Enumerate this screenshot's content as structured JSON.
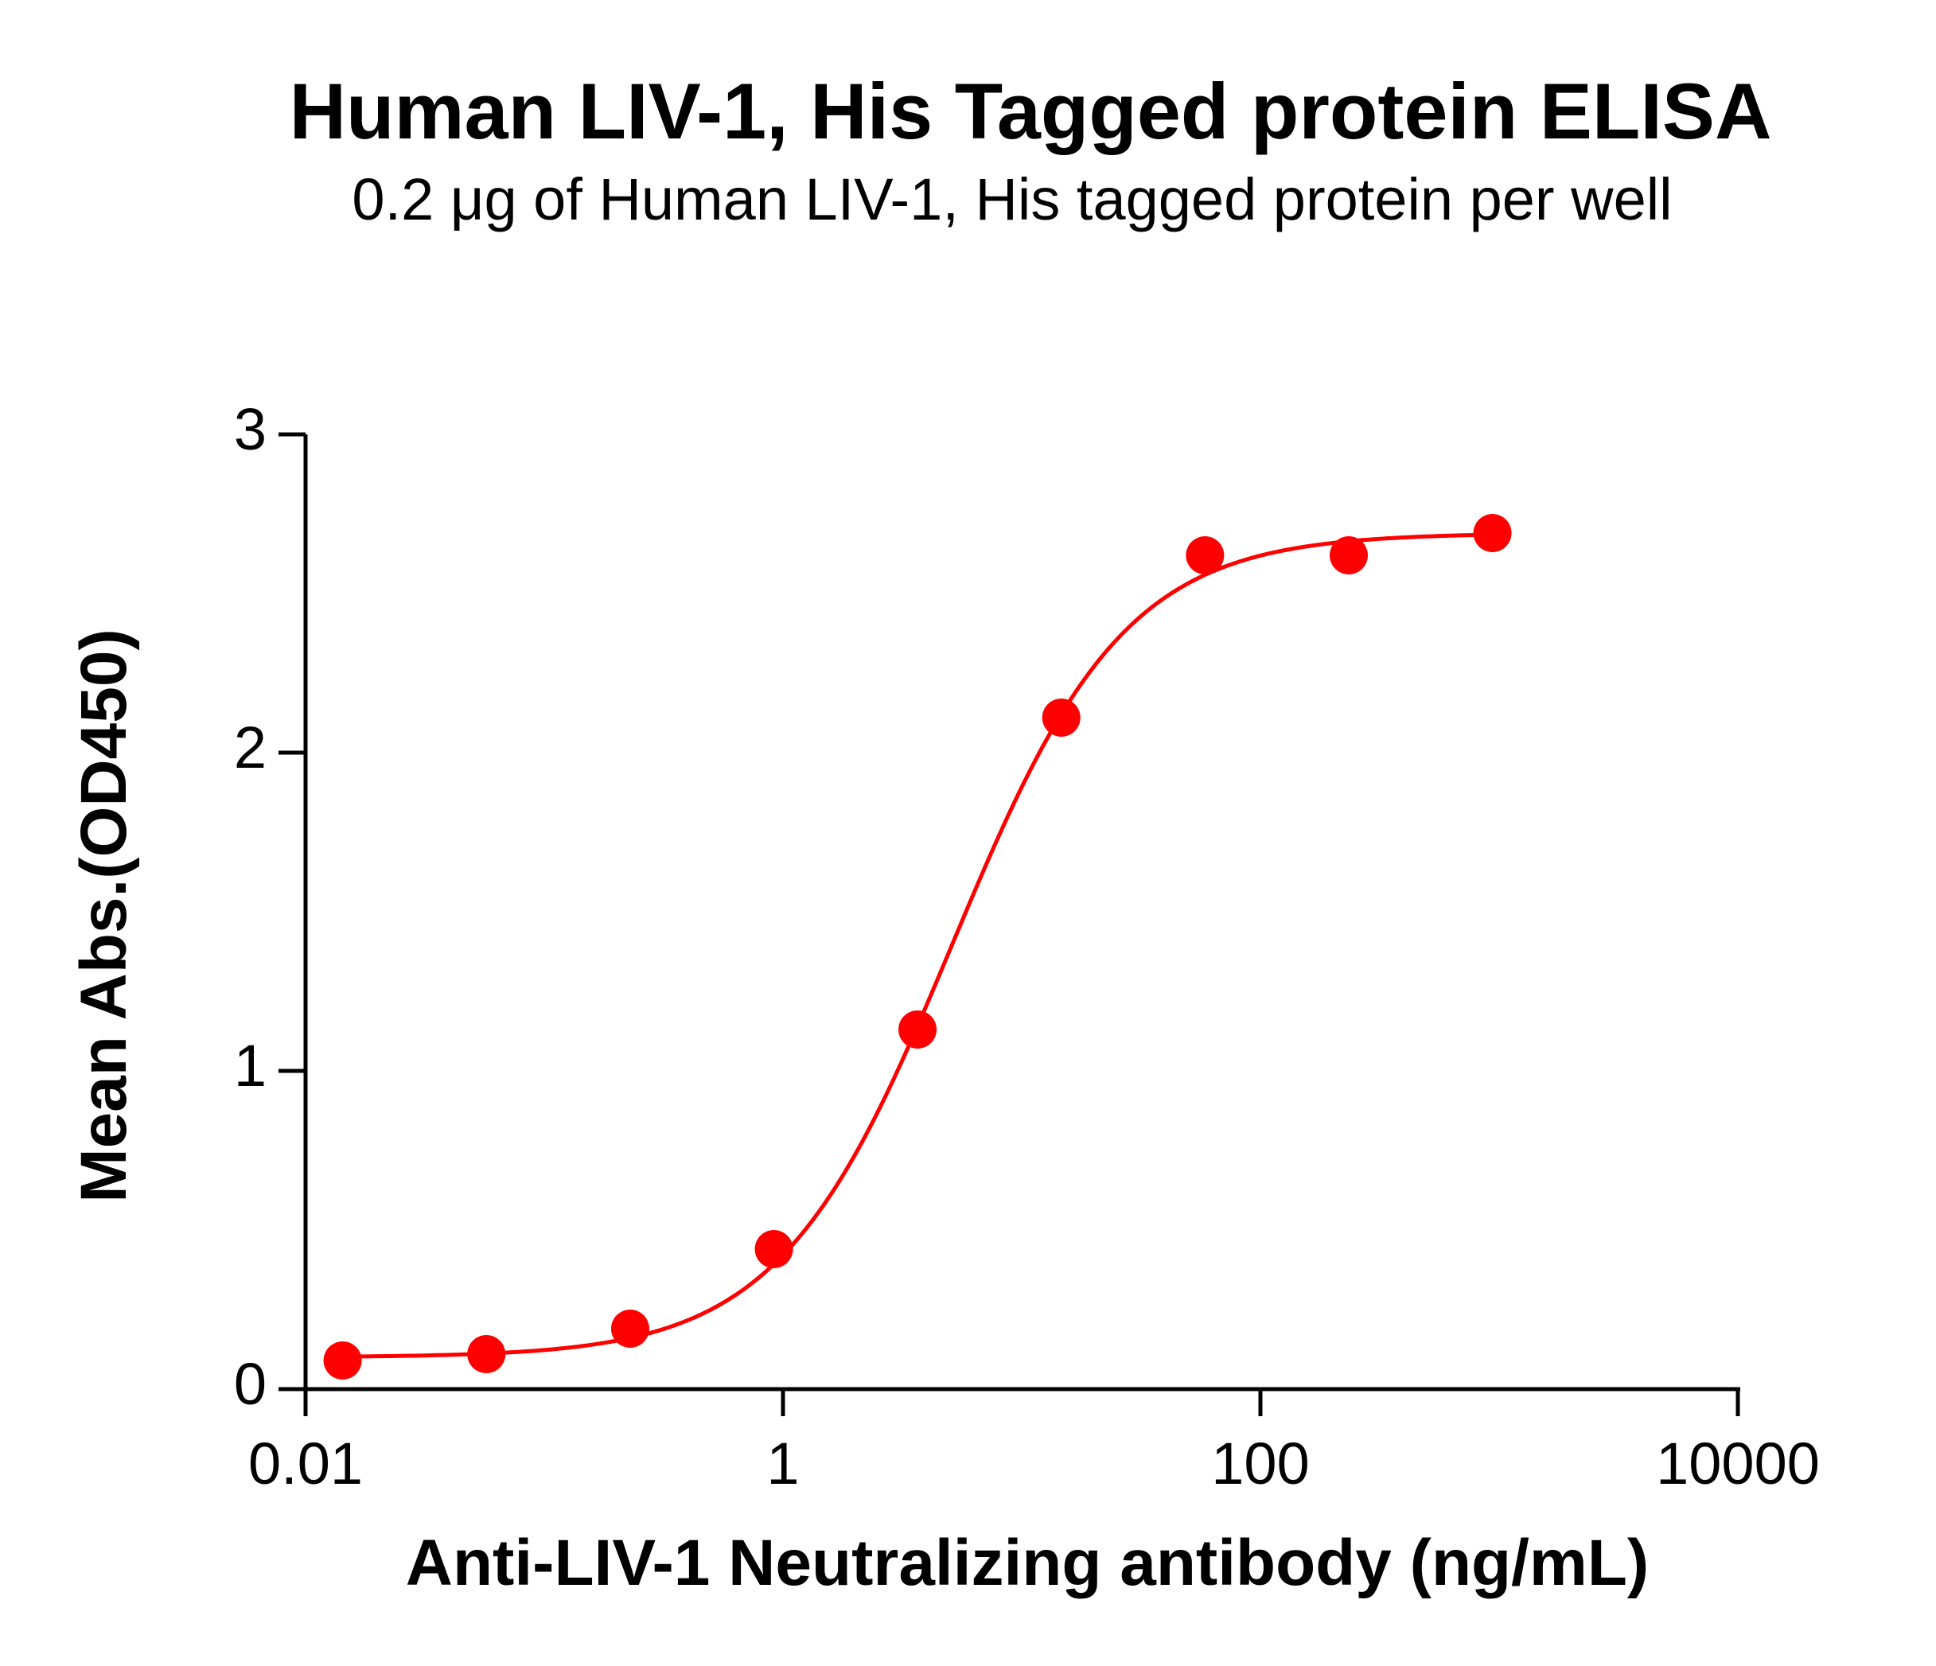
{
  "header": {
    "title": "Human LIV-1, His Tagged protein ELISA",
    "subtitle": "0.2 μg of Human LIV-1, His tagged protein per well"
  },
  "colors": {
    "series": "#FF0000",
    "axis": "#000000",
    "background": "#FFFFFF"
  },
  "chart_data": {
    "type": "scatter",
    "title": "Human LIV-1, His Tagged protein ELISA",
    "subtitle": "0.2 μg of Human LIV-1, His tagged protein per well",
    "xlabel": "Anti-LIV-1 Neutralizing antibody (ng/mL)",
    "ylabel": "Mean Abs.(OD450)",
    "xscale": "log10",
    "xlim": [
      0.01,
      10000
    ],
    "ylim": [
      0,
      3
    ],
    "xticks": [
      0.01,
      1,
      100,
      10000
    ],
    "xtick_labels": [
      "0.01",
      "1",
      "100",
      "10000"
    ],
    "yticks": [
      0,
      1,
      2,
      3
    ],
    "ytick_labels": [
      "0",
      "1",
      "2",
      "3"
    ],
    "grid": false,
    "legend": null,
    "series": [
      {
        "name": "Anti-LIV-1 Neutralizing antibody",
        "color": "#FF0000",
        "marker": "circle",
        "x": [
          0.0143,
          0.0572,
          0.229,
          0.916,
          3.66,
          14.65,
          58.6,
          234.4,
          937.5
        ],
        "y": [
          0.09,
          0.11,
          0.19,
          0.44,
          1.13,
          2.11,
          2.62,
          2.62,
          2.69
        ]
      }
    ],
    "fit": {
      "model": "4PL",
      "bottom": 0.1,
      "top": 2.69,
      "ec50": 5.1,
      "hill_slope": 1.2,
      "x_range": [
        0.0143,
        937.5
      ],
      "color": "#FF0000"
    }
  }
}
